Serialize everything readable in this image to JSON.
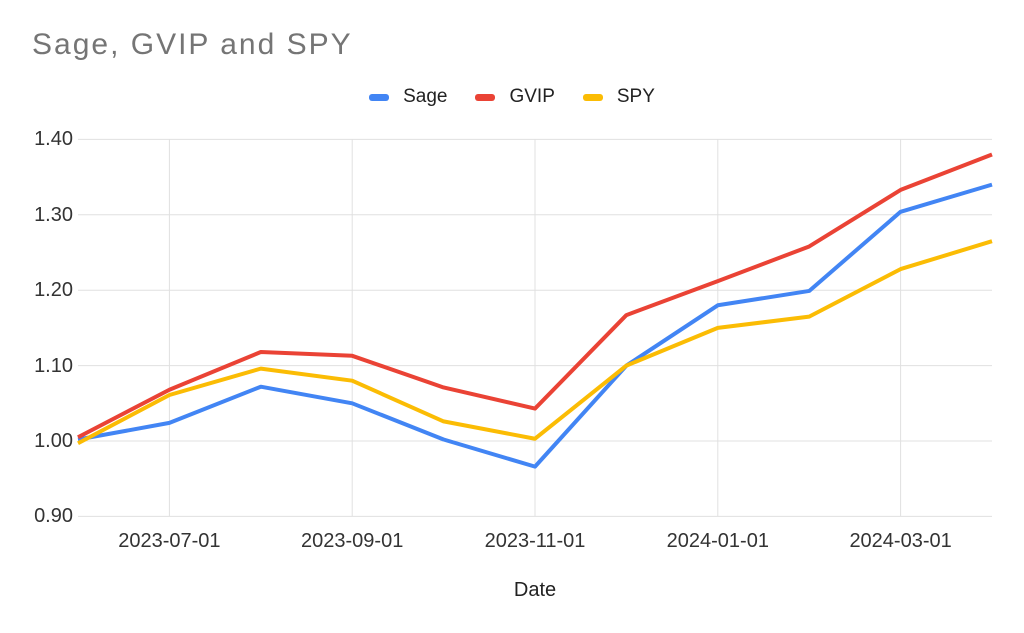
{
  "title": "Sage, GVIP and SPY",
  "x_axis_title": "Date",
  "chart_data": {
    "type": "line",
    "title": "Sage, GVIP and SPY",
    "xlabel": "Date",
    "ylabel": "",
    "x": [
      "2023-06-01",
      "2023-07-01",
      "2023-08-01",
      "2023-09-01",
      "2023-10-01",
      "2023-11-01",
      "2023-12-01",
      "2024-01-01",
      "2024-02-01",
      "2024-03-01",
      "2024-04-01"
    ],
    "series": [
      {
        "name": "Sage",
        "color": "#4285F4",
        "values": [
          1.002,
          1.024,
          1.072,
          1.05,
          1.002,
          0.966,
          1.1,
          1.18,
          1.199,
          1.304,
          1.34
        ]
      },
      {
        "name": "GVIP",
        "color": "#EA4335",
        "values": [
          1.005,
          1.068,
          1.118,
          1.113,
          1.071,
          1.043,
          1.167,
          1.212,
          1.258,
          1.333,
          1.38
        ]
      },
      {
        "name": "SPY",
        "color": "#FBBC04",
        "values": [
          0.997,
          1.061,
          1.096,
          1.08,
          1.026,
          1.003,
          1.1,
          1.15,
          1.165,
          1.228,
          1.265
        ]
      }
    ],
    "x_tick_labels": [
      "2023-07-01",
      "2023-09-01",
      "2023-11-01",
      "2024-01-01",
      "2024-03-01"
    ],
    "y_tick_labels": [
      "0.90",
      "1.00",
      "1.10",
      "1.20",
      "1.30",
      "1.40"
    ],
    "ylim": [
      0.9,
      1.4
    ],
    "grid": true,
    "legend_position": "top",
    "gridline_color": "#e0e0e0"
  }
}
